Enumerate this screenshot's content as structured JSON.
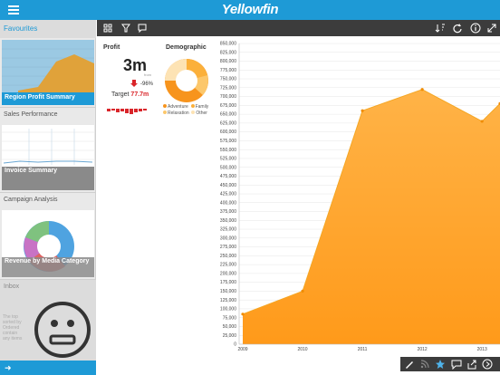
{
  "app": {
    "brand": "Yellowfin"
  },
  "sidebar": {
    "favourites_label": "Favourites",
    "panels": [
      {
        "section": "",
        "caption": "Region Profit Summary"
      },
      {
        "section": "Sales Performance",
        "caption": "Invoice Summary"
      },
      {
        "section": "Campaign Analysis",
        "caption": "Revenue by Media Category"
      },
      {
        "section": "Inbox",
        "caption": ""
      }
    ],
    "inbox_text": [
      "The top",
      "sorted by",
      "Ordered",
      "contain",
      "any items"
    ]
  },
  "kpi": {
    "title": "Profit",
    "value": "3m",
    "unit": "from",
    "change": "-96%",
    "target_label": "Target",
    "target_value": "77.7m"
  },
  "demographic": {
    "title": "Demographic",
    "legend": [
      "Adventure",
      "Family",
      "Relaxation",
      "Other"
    ],
    "colors": {
      "Adventure": "#f7941d",
      "Family": "#fbb03b",
      "Relaxation": "#fcc76b",
      "Other": "#fde3b4"
    }
  },
  "chart_data": {
    "type": "area",
    "x": [
      "2009",
      "2010",
      "2011",
      "2012",
      "2013",
      "2013.3"
    ],
    "values": [
      85000,
      150000,
      660000,
      720000,
      630000,
      680000
    ],
    "ylim": [
      0,
      850000
    ],
    "yticks": [
      "0",
      "25,000",
      "50,000",
      "75,000",
      "100,000",
      "125,000",
      "150,000",
      "175,000",
      "200,000",
      "225,000",
      "250,000",
      "275,000",
      "300,000",
      "325,000",
      "350,000",
      "375,000",
      "400,000",
      "425,000",
      "450,000",
      "475,000",
      "500,000",
      "525,000",
      "550,000",
      "575,000",
      "600,000",
      "625,000",
      "650,000",
      "675,000",
      "700,000",
      "725,000",
      "750,000",
      "775,000",
      "800,000",
      "825,000",
      "850,000"
    ],
    "xticks": [
      "2009",
      "2010",
      "2011",
      "2012",
      "2013"
    ],
    "grid": true,
    "color": "#ff9a1a"
  },
  "colors": {
    "accent": "#1e9ad6",
    "toolbar": "#3c3c3c",
    "negative": "#d9252a"
  }
}
